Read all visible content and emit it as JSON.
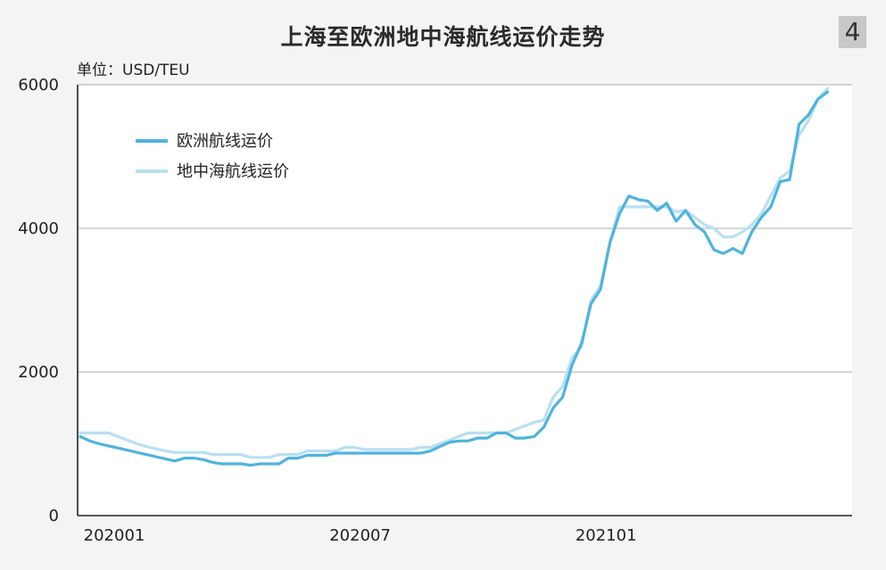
{
  "badge": "4",
  "chart_data": {
    "type": "line",
    "title": "上海至欧洲地中海航线运价走势",
    "unit_label": "单位：USD/TEU",
    "ylim": [
      0,
      6000
    ],
    "yticks": [
      0,
      2000,
      4000,
      6000
    ],
    "xticks": [
      {
        "label": "202001",
        "x": 0
      },
      {
        "label": "202007",
        "x": 26
      },
      {
        "label": "202101",
        "x": 52
      }
    ],
    "xlim": [
      0,
      77
    ],
    "grid": true,
    "legend_position": "top-left",
    "series": [
      {
        "name": "欧洲航线运价",
        "color": "#4fb3dd",
        "points": [
          [
            0,
            1100
          ],
          [
            1,
            1040
          ],
          [
            2,
            1000
          ],
          [
            3,
            970
          ],
          [
            4,
            940
          ],
          [
            5,
            910
          ],
          [
            6,
            880
          ],
          [
            7,
            850
          ],
          [
            8,
            820
          ],
          [
            9,
            790
          ],
          [
            10,
            760
          ],
          [
            11,
            800
          ],
          [
            12,
            800
          ],
          [
            13,
            780
          ],
          [
            14,
            740
          ],
          [
            15,
            720
          ],
          [
            16,
            720
          ],
          [
            17,
            720
          ],
          [
            18,
            700
          ],
          [
            19,
            720
          ],
          [
            20,
            720
          ],
          [
            21,
            720
          ],
          [
            22,
            800
          ],
          [
            23,
            800
          ],
          [
            24,
            840
          ],
          [
            25,
            840
          ],
          [
            26,
            840
          ],
          [
            27,
            870
          ],
          [
            28,
            870
          ],
          [
            29,
            870
          ],
          [
            30,
            870
          ],
          [
            31,
            870
          ],
          [
            32,
            870
          ],
          [
            33,
            870
          ],
          [
            34,
            870
          ],
          [
            35,
            870
          ],
          [
            36,
            870
          ],
          [
            37,
            900
          ],
          [
            38,
            960
          ],
          [
            39,
            1020
          ],
          [
            40,
            1040
          ],
          [
            41,
            1040
          ],
          [
            42,
            1080
          ],
          [
            43,
            1080
          ],
          [
            44,
            1150
          ],
          [
            45,
            1150
          ],
          [
            46,
            1080
          ],
          [
            47,
            1080
          ],
          [
            48,
            1100
          ],
          [
            49,
            1230
          ],
          [
            50,
            1500
          ],
          [
            51,
            1650
          ],
          [
            52,
            2100
          ],
          [
            53,
            2400
          ],
          [
            54,
            2950
          ],
          [
            55,
            3150
          ],
          [
            56,
            3800
          ],
          [
            57,
            4200
          ],
          [
            58,
            4450
          ],
          [
            59,
            4400
          ],
          [
            60,
            4380
          ],
          [
            61,
            4250
          ],
          [
            62,
            4350
          ],
          [
            63,
            4100
          ],
          [
            64,
            4250
          ],
          [
            65,
            4050
          ],
          [
            66,
            3950
          ],
          [
            67,
            3700
          ],
          [
            68,
            3650
          ],
          [
            69,
            3720
          ],
          [
            70,
            3650
          ],
          [
            71,
            3950
          ],
          [
            72,
            4150
          ],
          [
            73,
            4300
          ],
          [
            74,
            4650
          ],
          [
            75,
            4680
          ],
          [
            76,
            5450
          ],
          [
            77,
            5580
          ],
          [
            78,
            5800
          ],
          [
            79,
            5900
          ]
        ]
      },
      {
        "name": "地中海航线运价",
        "color": "#b8e0f2",
        "points": [
          [
            0,
            1150
          ],
          [
            1,
            1150
          ],
          [
            2,
            1150
          ],
          [
            3,
            1150
          ],
          [
            4,
            1100
          ],
          [
            5,
            1050
          ],
          [
            6,
            1000
          ],
          [
            7,
            960
          ],
          [
            8,
            930
          ],
          [
            9,
            900
          ],
          [
            10,
            880
          ],
          [
            11,
            880
          ],
          [
            12,
            880
          ],
          [
            13,
            880
          ],
          [
            14,
            850
          ],
          [
            15,
            850
          ],
          [
            16,
            850
          ],
          [
            17,
            850
          ],
          [
            18,
            810
          ],
          [
            19,
            810
          ],
          [
            20,
            810
          ],
          [
            21,
            850
          ],
          [
            22,
            850
          ],
          [
            23,
            850
          ],
          [
            24,
            900
          ],
          [
            25,
            900
          ],
          [
            26,
            900
          ],
          [
            27,
            900
          ],
          [
            28,
            950
          ],
          [
            29,
            950
          ],
          [
            30,
            920
          ],
          [
            31,
            920
          ],
          [
            32,
            920
          ],
          [
            33,
            920
          ],
          [
            34,
            920
          ],
          [
            35,
            920
          ],
          [
            36,
            950
          ],
          [
            37,
            950
          ],
          [
            38,
            1000
          ],
          [
            39,
            1050
          ],
          [
            40,
            1100
          ],
          [
            41,
            1150
          ],
          [
            42,
            1150
          ],
          [
            43,
            1150
          ],
          [
            44,
            1150
          ],
          [
            45,
            1150
          ],
          [
            46,
            1200
          ],
          [
            47,
            1250
          ],
          [
            48,
            1300
          ],
          [
            49,
            1330
          ],
          [
            50,
            1650
          ],
          [
            51,
            1800
          ],
          [
            52,
            2200
          ],
          [
            53,
            2350
          ],
          [
            54,
            3000
          ],
          [
            55,
            3200
          ],
          [
            56,
            3800
          ],
          [
            57,
            4300
          ],
          [
            58,
            4300
          ],
          [
            59,
            4300
          ],
          [
            60,
            4300
          ],
          [
            61,
            4300
          ],
          [
            62,
            4300
          ],
          [
            63,
            4230
          ],
          [
            64,
            4250
          ],
          [
            65,
            4150
          ],
          [
            66,
            4050
          ],
          [
            67,
            4000
          ],
          [
            68,
            3880
          ],
          [
            69,
            3880
          ],
          [
            70,
            3950
          ],
          [
            71,
            4050
          ],
          [
            72,
            4200
          ],
          [
            73,
            4450
          ],
          [
            74,
            4700
          ],
          [
            75,
            4800
          ],
          [
            76,
            5300
          ],
          [
            77,
            5500
          ],
          [
            78,
            5800
          ],
          [
            79,
            5950
          ]
        ]
      }
    ]
  }
}
